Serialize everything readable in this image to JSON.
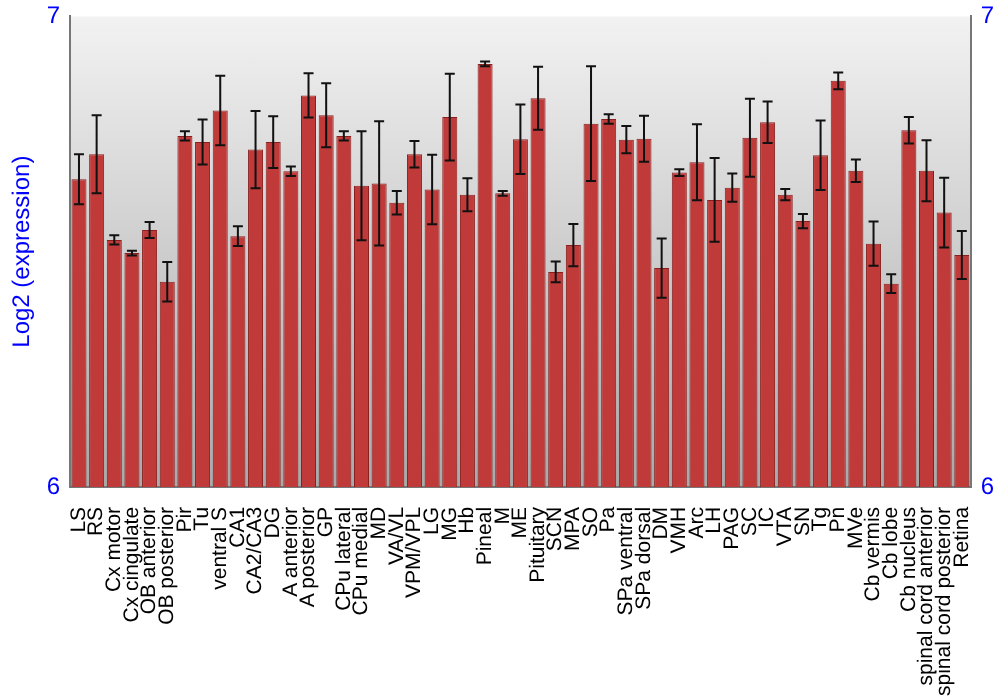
{
  "chart_data": {
    "type": "bar",
    "ylabel": "Log2 (expression)",
    "categories": [
      "LS",
      "RS",
      "Cx motor",
      "Cx cingulate",
      "OB anterior",
      "OB posterior",
      "Pir",
      "Tu",
      "ventral S",
      "CA1",
      "CA2/CA3",
      "DG",
      "A anterior",
      "A posterior",
      "GP",
      "CPu lateral",
      "CPu medial",
      "MD",
      "VA/VL",
      "VPM/VPL",
      "LG",
      "MG",
      "Hb",
      "Pineal",
      "M",
      "ME",
      "Pituitary",
      "SCN",
      "MPA",
      "SO",
      "Pa",
      "SPa ventral",
      "SPa dorsal",
      "DM",
      "VMH",
      "Arc",
      "LH",
      "PAG",
      "SC",
      "IC",
      "VTA",
      "SN",
      "Tg",
      "Pn",
      "MVe",
      "Cb vermis",
      "Cb lobe",
      "Cb nucleus",
      "spinal cord anterior",
      "spinal cord posterior",
      "Retina"
    ],
    "values": [
      6.654,
      6.707,
      6.525,
      6.497,
      6.546,
      6.436,
      6.746,
      6.733,
      6.8,
      6.533,
      6.717,
      6.733,
      6.671,
      6.832,
      6.79,
      6.746,
      6.64,
      6.645,
      6.604,
      6.707,
      6.632,
      6.786,
      6.621,
      6.899,
      6.624,
      6.739,
      6.826,
      6.457,
      6.514,
      6.772,
      6.782,
      6.738,
      6.74,
      6.465,
      6.668,
      6.69,
      6.61,
      6.636,
      6.742,
      6.775,
      6.621,
      6.565,
      6.705,
      6.863,
      6.672,
      6.517,
      6.432,
      6.758,
      6.672,
      6.583,
      6.493
    ],
    "errors": [
      0.053,
      0.083,
      0.01,
      0.005,
      0.017,
      0.042,
      0.01,
      0.048,
      0.074,
      0.021,
      0.082,
      0.055,
      0.01,
      0.047,
      0.068,
      0.01,
      0.116,
      0.132,
      0.025,
      0.028,
      0.074,
      0.092,
      0.035,
      0.005,
      0.005,
      0.074,
      0.067,
      0.022,
      0.045,
      0.122,
      0.01,
      0.029,
      0.049,
      0.063,
      0.007,
      0.081,
      0.089,
      0.03,
      0.083,
      0.044,
      0.012,
      0.015,
      0.074,
      0.018,
      0.024,
      0.047,
      0.02,
      0.028,
      0.065,
      0.074,
      0.051
    ],
    "color": "#c03a3a",
    "ylim": [
      6,
      7
    ],
    "yticks": [
      6,
      7
    ],
    "y2lim": [
      6,
      7
    ],
    "y2ticks": [
      6,
      7
    ],
    "grid": false,
    "legend": false
  }
}
